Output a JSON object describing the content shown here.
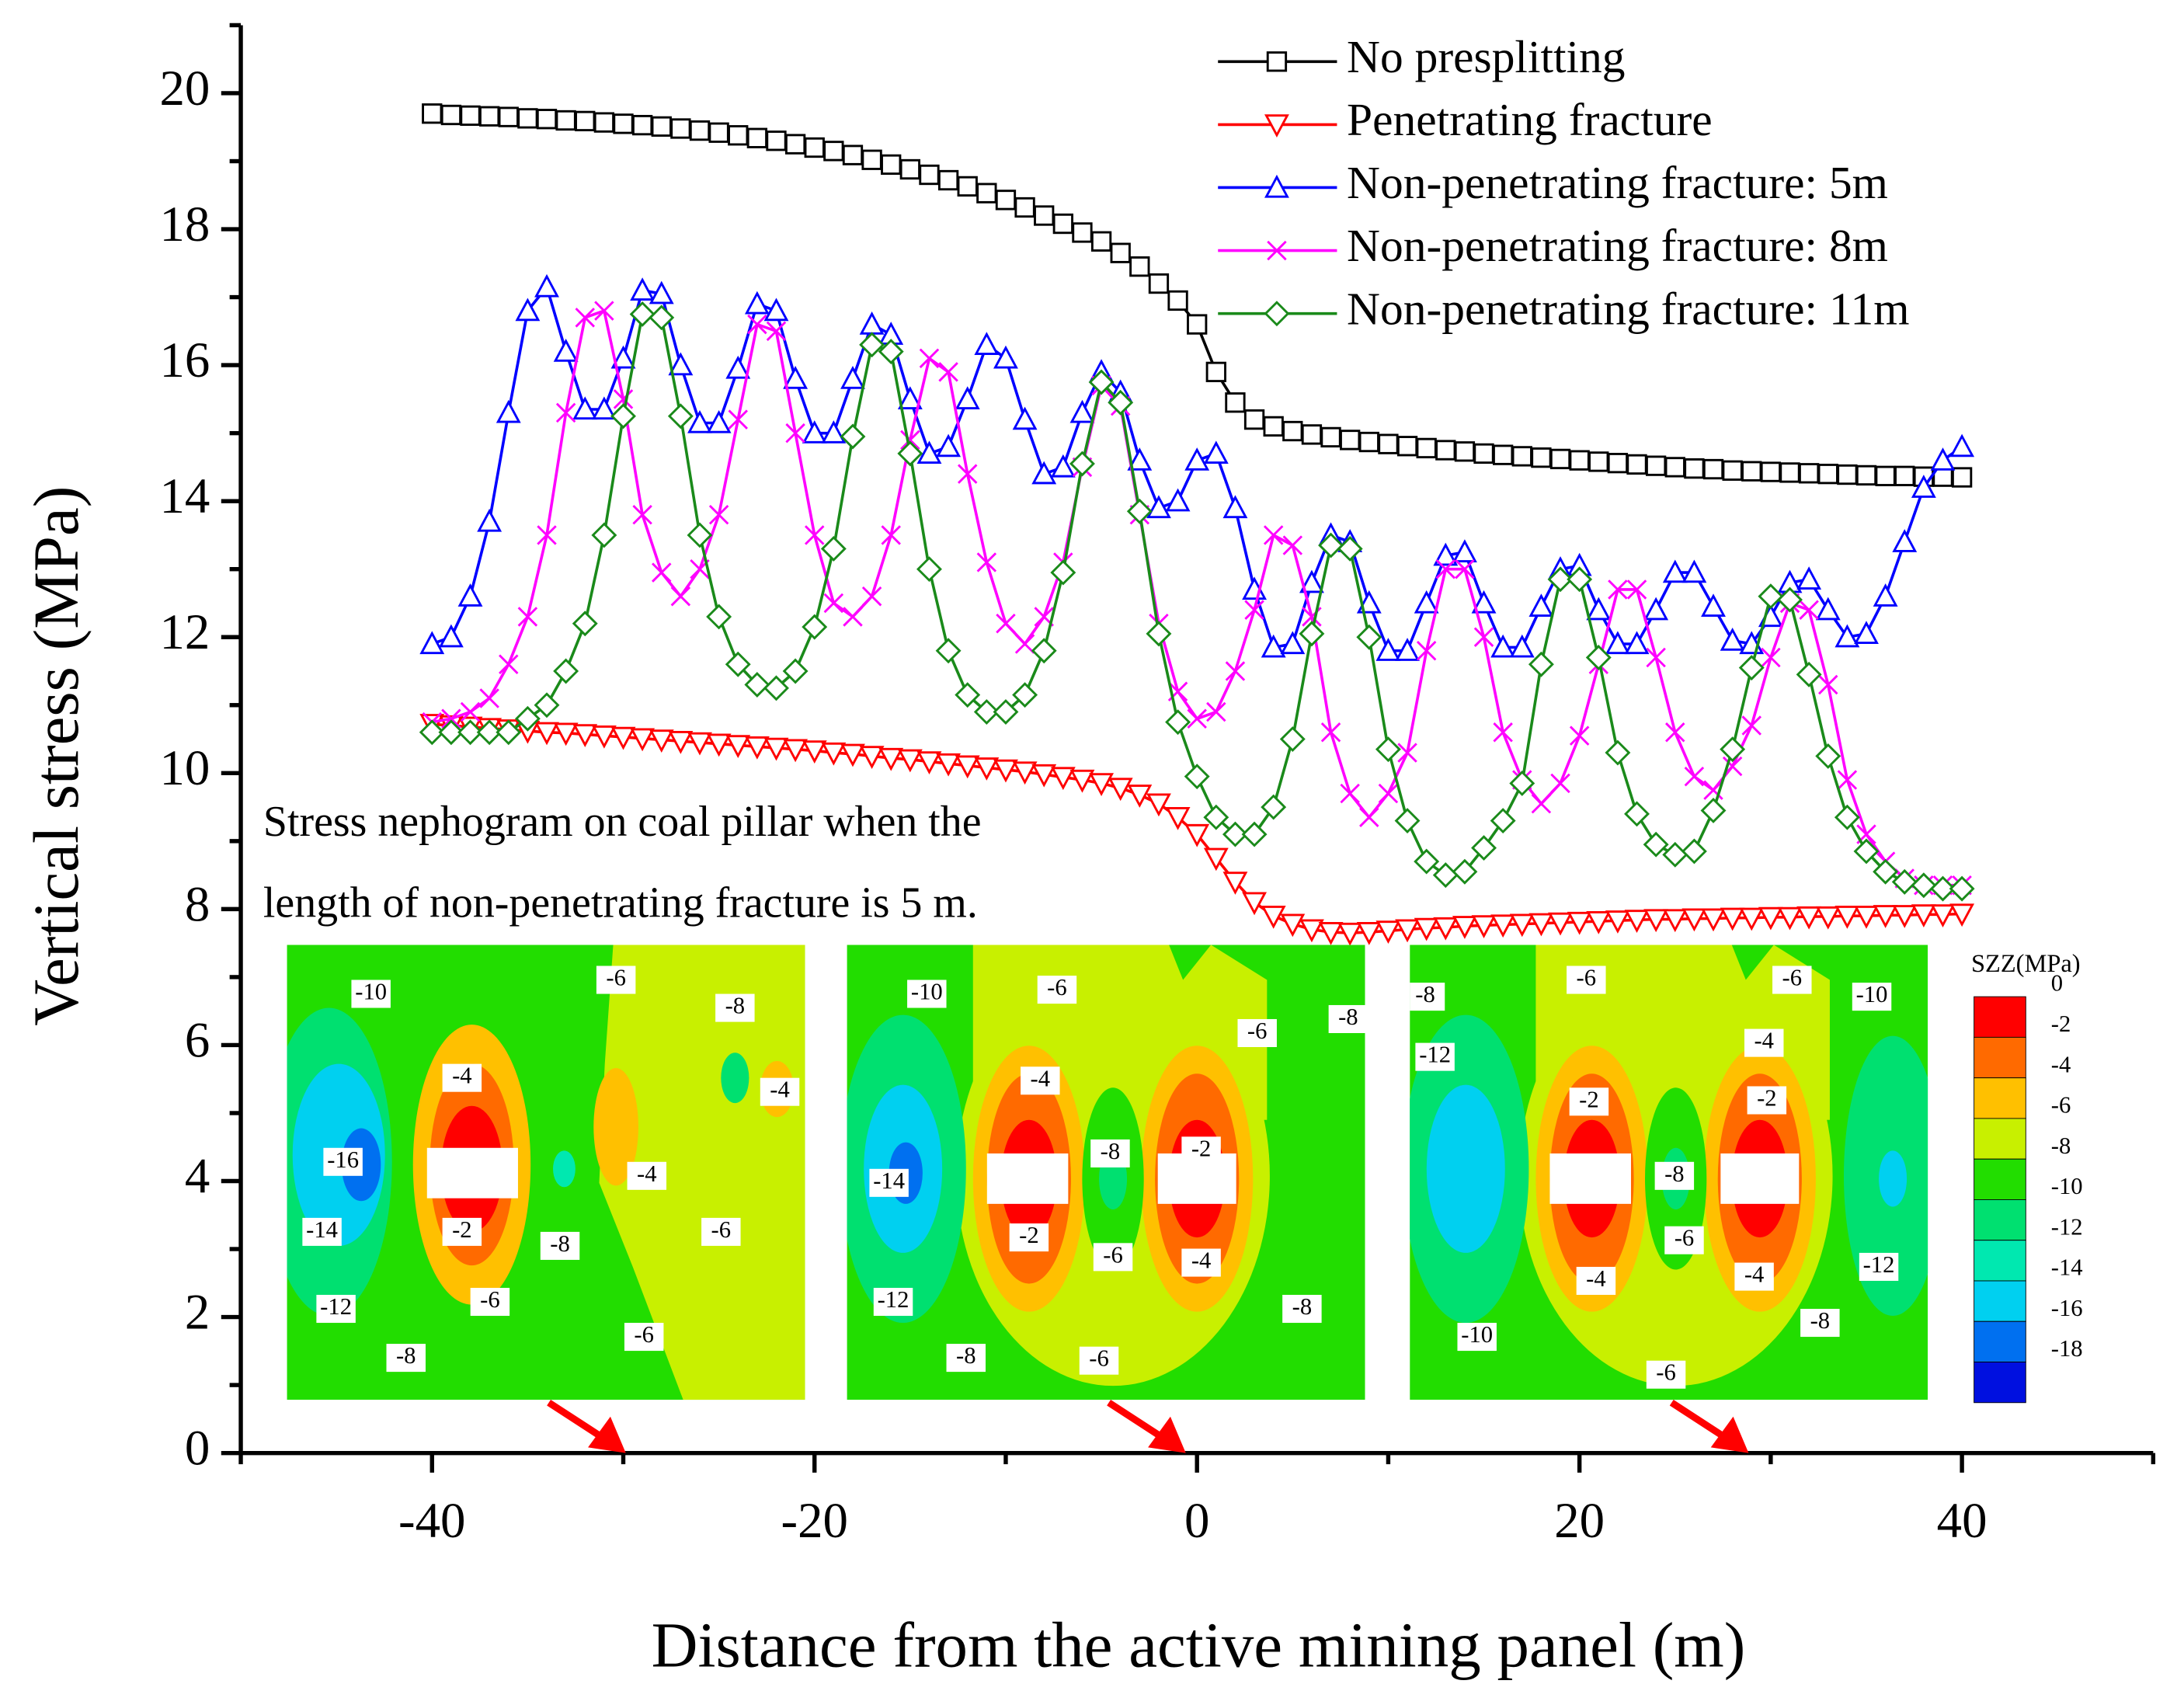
{
  "chart_data": {
    "type": "line",
    "xlabel": "Distance from the active mining panel (m)",
    "ylabel": "Vertical stress (MPa)",
    "xlim": [
      -50,
      50
    ],
    "ylim": [
      0,
      21
    ],
    "xticks": [
      -40,
      -20,
      0,
      20,
      40
    ],
    "xminorticks": [
      -50,
      -30,
      -10,
      10,
      30,
      50
    ],
    "yticks": [
      0,
      2,
      4,
      6,
      8,
      10,
      12,
      14,
      16,
      18,
      20
    ],
    "yminorticks": [
      1,
      3,
      5,
      7,
      9,
      11,
      13,
      15,
      17,
      19,
      21
    ],
    "legend": "upper right",
    "x": [
      -40,
      -39,
      -38,
      -37,
      -36,
      -35,
      -34,
      -33,
      -32,
      -31,
      -30,
      -29,
      -28,
      -27,
      -26,
      -25,
      -24,
      -23,
      -22,
      -21,
      -20,
      -19,
      -18,
      -17,
      -16,
      -15,
      -14,
      -13,
      -12,
      -11,
      -10,
      -9,
      -8,
      -7,
      -6,
      -5,
      -4,
      -3,
      -2,
      -1,
      0,
      1,
      2,
      3,
      4,
      5,
      6,
      7,
      8,
      9,
      10,
      11,
      12,
      13,
      14,
      15,
      16,
      17,
      18,
      19,
      20,
      21,
      22,
      23,
      24,
      25,
      26,
      27,
      28,
      29,
      30,
      31,
      32,
      33,
      34,
      35,
      36,
      37,
      38,
      39,
      40
    ],
    "series": [
      {
        "name": "No presplitting",
        "color": "#000000",
        "marker": "square",
        "values": [
          19.7,
          19.68,
          19.67,
          19.66,
          19.65,
          19.63,
          19.62,
          19.6,
          19.59,
          19.57,
          19.55,
          19.53,
          19.51,
          19.48,
          19.45,
          19.42,
          19.38,
          19.34,
          19.3,
          19.25,
          19.2,
          19.15,
          19.09,
          19.02,
          18.95,
          18.88,
          18.8,
          18.72,
          18.63,
          18.53,
          18.43,
          18.32,
          18.2,
          18.08,
          17.95,
          17.82,
          17.65,
          17.45,
          17.2,
          16.95,
          16.6,
          15.9,
          15.45,
          15.2,
          15.1,
          15.03,
          14.98,
          14.94,
          14.9,
          14.87,
          14.84,
          14.81,
          14.78,
          14.75,
          14.73,
          14.7,
          14.68,
          14.66,
          14.64,
          14.62,
          14.6,
          14.58,
          14.56,
          14.54,
          14.52,
          14.5,
          14.48,
          14.47,
          14.45,
          14.44,
          14.43,
          14.42,
          14.41,
          14.4,
          14.39,
          14.38,
          14.37,
          14.37,
          14.36,
          14.36,
          14.35
        ]
      },
      {
        "name": "Penetrating fracture",
        "color": "#ff0000",
        "marker": "triangle-down",
        "values": [
          10.72,
          10.7,
          10.68,
          10.66,
          10.64,
          10.62,
          10.6,
          10.59,
          10.57,
          10.55,
          10.53,
          10.51,
          10.49,
          10.47,
          10.45,
          10.43,
          10.41,
          10.39,
          10.37,
          10.35,
          10.33,
          10.3,
          10.28,
          10.25,
          10.22,
          10.2,
          10.17,
          10.14,
          10.11,
          10.08,
          10.05,
          10.02,
          9.98,
          9.94,
          9.9,
          9.85,
          9.78,
          9.68,
          9.55,
          9.35,
          9.1,
          8.75,
          8.4,
          8.1,
          7.9,
          7.78,
          7.7,
          7.66,
          7.65,
          7.66,
          7.68,
          7.7,
          7.72,
          7.73,
          7.75,
          7.76,
          7.77,
          7.78,
          7.79,
          7.8,
          7.81,
          7.82,
          7.83,
          7.84,
          7.85,
          7.85,
          7.86,
          7.86,
          7.87,
          7.87,
          7.88,
          7.88,
          7.89,
          7.89,
          7.9,
          7.9,
          7.91,
          7.91,
          7.92,
          7.92,
          7.93
        ]
      },
      {
        "name": "Non-penetrating fracture: 5m",
        "color": "#0000ff",
        "marker": "triangle-up",
        "values": [
          11.9,
          12.0,
          12.6,
          13.7,
          15.3,
          16.8,
          17.15,
          16.2,
          15.35,
          15.35,
          16.1,
          17.1,
          17.05,
          16.0,
          15.15,
          15.15,
          15.95,
          16.9,
          16.8,
          15.8,
          15.0,
          15.0,
          15.8,
          16.6,
          16.45,
          15.5,
          14.7,
          14.8,
          15.5,
          16.3,
          16.1,
          15.2,
          14.4,
          14.5,
          15.3,
          15.9,
          15.6,
          14.6,
          13.9,
          14.0,
          14.6,
          14.7,
          13.9,
          12.7,
          11.85,
          11.9,
          12.8,
          13.5,
          13.4,
          12.5,
          11.8,
          11.8,
          12.5,
          13.2,
          13.25,
          12.5,
          11.85,
          11.85,
          12.45,
          13.0,
          13.05,
          12.4,
          11.9,
          11.9,
          12.4,
          12.95,
          12.95,
          12.45,
          11.95,
          11.9,
          12.3,
          12.8,
          12.85,
          12.4,
          12.0,
          12.05,
          12.6,
          13.4,
          14.2,
          14.6,
          14.8
        ]
      },
      {
        "name": "Non-penetrating fracture: 8m",
        "color": "#ff00ff",
        "marker": "x",
        "values": [
          10.75,
          10.8,
          10.9,
          11.1,
          11.6,
          12.3,
          13.5,
          15.3,
          16.7,
          16.8,
          15.5,
          13.8,
          12.95,
          12.6,
          13.0,
          13.8,
          15.2,
          16.6,
          16.5,
          15.0,
          13.5,
          12.5,
          12.3,
          12.6,
          13.5,
          14.9,
          16.1,
          15.9,
          14.4,
          13.1,
          12.2,
          11.9,
          12.3,
          13.1,
          14.5,
          15.7,
          15.4,
          13.8,
          12.2,
          11.2,
          10.8,
          10.9,
          11.5,
          12.4,
          13.5,
          13.35,
          12.3,
          10.6,
          9.7,
          9.35,
          9.7,
          10.3,
          11.8,
          13.0,
          13.0,
          12.0,
          10.6,
          9.9,
          9.55,
          9.85,
          10.55,
          11.6,
          12.7,
          12.7,
          11.7,
          10.6,
          9.95,
          9.75,
          10.1,
          10.7,
          11.7,
          12.5,
          12.4,
          11.3,
          9.9,
          9.1,
          8.7,
          8.45,
          8.35,
          8.35,
          8.35
        ]
      },
      {
        "name": "Non-penetrating fracture: 11m",
        "color": "#1a8a1a",
        "marker": "diamond",
        "values": [
          10.6,
          10.6,
          10.6,
          10.6,
          10.6,
          10.8,
          11.0,
          11.5,
          12.2,
          13.5,
          15.25,
          16.75,
          16.7,
          15.25,
          13.5,
          12.3,
          11.6,
          11.3,
          11.25,
          11.5,
          12.15,
          13.3,
          14.95,
          16.3,
          16.2,
          14.7,
          13.0,
          11.8,
          11.15,
          10.9,
          10.9,
          11.15,
          11.8,
          12.95,
          14.55,
          15.75,
          15.45,
          13.85,
          12.05,
          10.75,
          9.95,
          9.35,
          9.1,
          9.1,
          9.5,
          10.5,
          12.05,
          13.35,
          13.3,
          12.0,
          10.35,
          9.3,
          8.7,
          8.5,
          8.55,
          8.9,
          9.3,
          9.85,
          11.6,
          12.85,
          12.85,
          11.7,
          10.3,
          9.4,
          8.95,
          8.8,
          8.85,
          9.45,
          10.35,
          11.55,
          12.6,
          12.55,
          11.45,
          10.25,
          9.35,
          8.85,
          8.55,
          8.4,
          8.35,
          8.3,
          8.3
        ]
      }
    ],
    "annotation": [
      "Stress nephogram on coal pillar when the",
      "length of non-penetrating fracture is 5 m."
    ],
    "insets": [
      {
        "labels": [
          -10,
          -4,
          -16,
          -14,
          -2,
          -8,
          -12,
          -6,
          -8,
          -6,
          -4,
          -6,
          -8,
          -4,
          -6
        ]
      },
      {
        "labels": [
          -10,
          -6,
          -6,
          -8,
          -4,
          -8,
          -2,
          -14,
          -2,
          -6,
          -4,
          -12,
          -8,
          -8,
          -6
        ]
      },
      {
        "labels": [
          -8,
          -6,
          -6,
          -10,
          -12,
          -4,
          -2,
          -2,
          -8,
          -6,
          -4,
          -4,
          -12,
          -10,
          -8,
          -6
        ]
      }
    ],
    "colorbar": {
      "title": "SZZ(MPa)",
      "levels": [
        0,
        -2,
        -4,
        -6,
        -8,
        -10,
        -12,
        -14,
        -16,
        -18
      ],
      "colors": [
        "#ff0000",
        "#ff6a00",
        "#ffc000",
        "#c8f000",
        "#22dd00",
        "#00e070",
        "#00e8b0",
        "#00d0f0",
        "#0070f0",
        "#0010e0"
      ]
    }
  }
}
